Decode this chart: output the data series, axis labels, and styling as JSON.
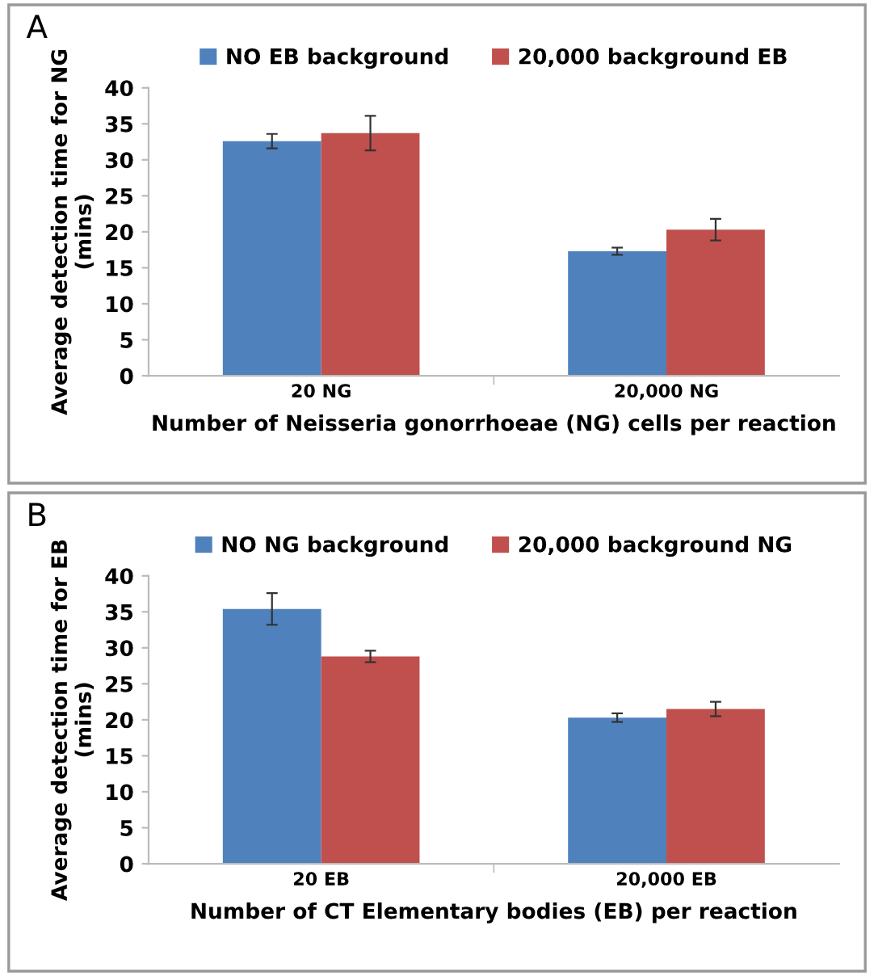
{
  "chart_data": [
    {
      "type": "bar",
      "annotations": [
        "A"
      ],
      "ylabel": "Average detection time for NG\n(mins)",
      "xlabel": "Number of Neisseria gonorrhoeae (NG) cells per reaction",
      "categories": [
        "20 NG",
        "20,000 NG"
      ],
      "series": [
        {
          "name": "NO EB background",
          "color": "#4f81bd",
          "values": [
            32.6,
            17.3
          ],
          "errors": [
            1.0,
            0.5
          ]
        },
        {
          "name": "20,000 background EB",
          "color": "#c0504d",
          "values": [
            33.7,
            20.3
          ],
          "errors": [
            2.4,
            1.5
          ]
        }
      ],
      "ylim": [
        0,
        40
      ],
      "yticks": [
        0,
        5,
        10,
        15,
        20,
        25,
        30,
        35,
        40
      ],
      "grid": false,
      "legend": "top"
    },
    {
      "type": "bar",
      "annotations": [
        "B"
      ],
      "ylabel": "Average detection time for EB\n(mins)",
      "xlabel": "Number of CT Elementary bodies (EB) per reaction",
      "categories": [
        "20 EB",
        "20,000 EB"
      ],
      "series": [
        {
          "name": "NO NG background",
          "color": "#4f81bd",
          "values": [
            35.4,
            20.3
          ],
          "errors": [
            2.2,
            0.6
          ]
        },
        {
          "name": "20,000 background NG",
          "color": "#c0504d",
          "values": [
            28.8,
            21.5
          ],
          "errors": [
            0.8,
            1.0
          ]
        }
      ],
      "ylim": [
        0,
        40
      ],
      "yticks": [
        0,
        5,
        10,
        15,
        20,
        25,
        30,
        35,
        40
      ],
      "grid": false,
      "legend": "top"
    }
  ]
}
